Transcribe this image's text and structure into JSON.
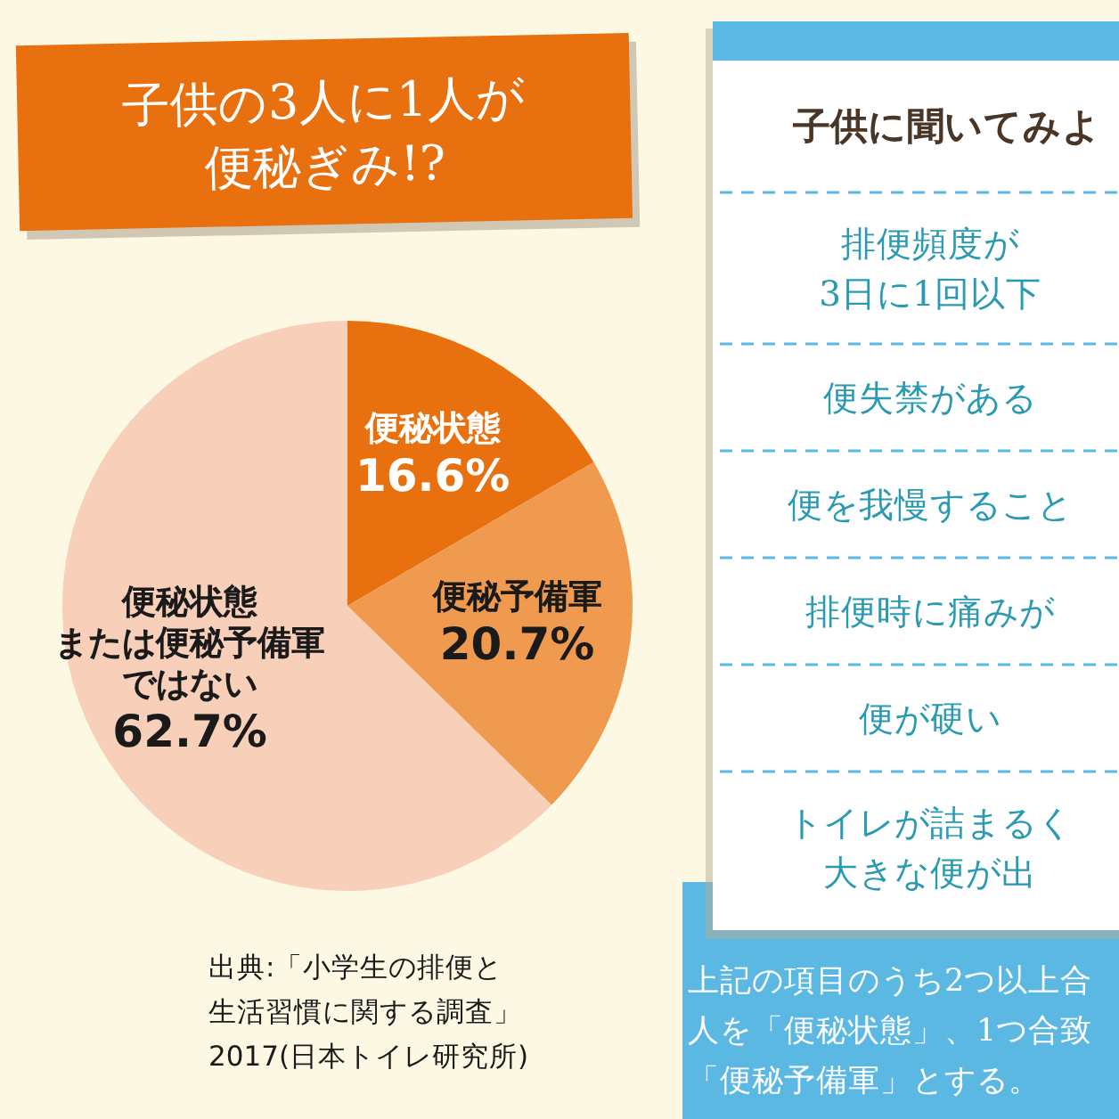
{
  "chart_data": [
    {
      "type": "pie",
      "title": "子供の3人に1人が便秘ぎみ!?",
      "categories": [
        "便秘状態",
        "便秘予備軍",
        "便秘状態または便秘予備軍ではない"
      ],
      "values": [
        16.6,
        20.7,
        62.7
      ],
      "colors": [
        "#e8700e",
        "#f09a4f",
        "#f8cfb8"
      ],
      "value_labels": [
        "16.6%",
        "20.7%",
        "62.7%"
      ],
      "annotations": [
        "出典:「小学生の排便と生活習慣に関する調査」2017(日本トイレ研究所)"
      ]
    },
    {
      "type": "other",
      "title": "子供に聞いてみよ",
      "annotations": [
        "排便頻度が3日に1回以下",
        "便失禁がある",
        "便を我慢すること",
        "排便時に痛みが",
        "便が硬い",
        "トイレが詰まるく大きな便が出",
        "上記の項目のうち2つ以上合人を「便秘状態」、1つ合致「便秘予備軍」とする。"
      ]
    }
  ]
}
